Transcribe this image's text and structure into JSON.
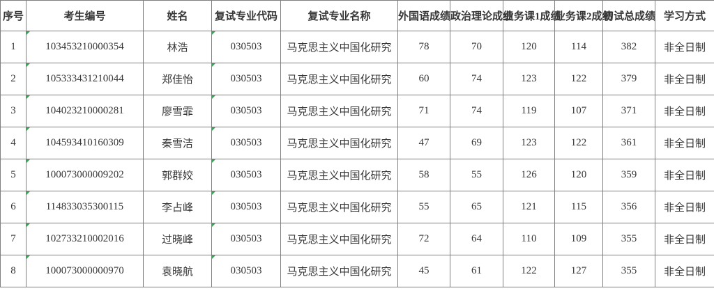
{
  "table": {
    "columns": [
      {
        "key": "seq",
        "label": "序号"
      },
      {
        "key": "candidate_id",
        "label": "考生编号"
      },
      {
        "key": "name",
        "label": "姓名"
      },
      {
        "key": "major_code",
        "label": "复试专业代码"
      },
      {
        "key": "major_name",
        "label": "复试专业名称"
      },
      {
        "key": "foreign_lang",
        "label": "外国语成绩"
      },
      {
        "key": "politics",
        "label": "政治理论成绩"
      },
      {
        "key": "course1",
        "label": "业务课1成绩"
      },
      {
        "key": "course2",
        "label": "业务课2成绩"
      },
      {
        "key": "total",
        "label": "初试总成绩"
      },
      {
        "key": "study_mode",
        "label": "学习方式"
      }
    ],
    "rows": [
      {
        "seq": "1",
        "candidate_id": "103453210000354",
        "name": "林浩",
        "major_code": "030503",
        "major_name": "马克思主义中国化研究",
        "foreign_lang": "78",
        "politics": "70",
        "course1": "120",
        "course2": "114",
        "total": "382",
        "study_mode": "非全日制"
      },
      {
        "seq": "2",
        "candidate_id": "105333431210044",
        "name": "郑佳怡",
        "major_code": "030503",
        "major_name": "马克思主义中国化研究",
        "foreign_lang": "60",
        "politics": "74",
        "course1": "123",
        "course2": "122",
        "total": "379",
        "study_mode": "非全日制"
      },
      {
        "seq": "3",
        "candidate_id": "104023210000281",
        "name": "廖雪霏",
        "major_code": "030503",
        "major_name": "马克思主义中国化研究",
        "foreign_lang": "71",
        "politics": "74",
        "course1": "119",
        "course2": "107",
        "total": "371",
        "study_mode": "非全日制"
      },
      {
        "seq": "4",
        "candidate_id": "104593410160309",
        "name": "秦雪洁",
        "major_code": "030503",
        "major_name": "马克思主义中国化研究",
        "foreign_lang": "47",
        "politics": "69",
        "course1": "123",
        "course2": "122",
        "total": "361",
        "study_mode": "非全日制"
      },
      {
        "seq": "5",
        "candidate_id": "100073000009202",
        "name": "郭群姣",
        "major_code": "030503",
        "major_name": "马克思主义中国化研究",
        "foreign_lang": "58",
        "politics": "55",
        "course1": "126",
        "course2": "120",
        "total": "359",
        "study_mode": "非全日制"
      },
      {
        "seq": "6",
        "candidate_id": "114833035300115",
        "name": "李占峰",
        "major_code": "030503",
        "major_name": "马克思主义中国化研究",
        "foreign_lang": "55",
        "politics": "65",
        "course1": "121",
        "course2": "115",
        "total": "356",
        "study_mode": "非全日制"
      },
      {
        "seq": "7",
        "candidate_id": "102733210002016",
        "name": "过晓峰",
        "major_code": "030503",
        "major_name": "马克思主义中国化研究",
        "foreign_lang": "72",
        "politics": "64",
        "course1": "110",
        "course2": "109",
        "total": "355",
        "study_mode": "非全日制"
      },
      {
        "seq": "8",
        "candidate_id": "100073000000970",
        "name": "袁晓航",
        "major_code": "030503",
        "major_name": "马克思主义中国化研究",
        "foreign_lang": "45",
        "politics": "61",
        "course1": "122",
        "course2": "127",
        "total": "355",
        "study_mode": "非全日制"
      }
    ]
  },
  "colors": {
    "text": "#363636",
    "border": "#7f7f7f",
    "flag_marker": "#3aa557",
    "background": "#ffffff"
  }
}
